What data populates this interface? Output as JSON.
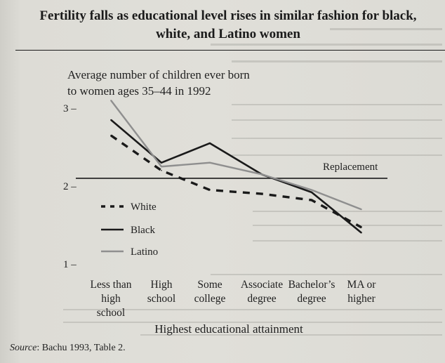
{
  "figure": {
    "title_line1": "Fertility falls as educational level rises in similar fashion for black,",
    "title_line2": "white, and Latino women",
    "source_label": "Source",
    "source_text": ": Bachu 1993, Table 2."
  },
  "chart_data": {
    "type": "line",
    "title_line1": "Average number of children ever born",
    "title_line2": "to women ages 35–44 in 1992",
    "xlabel": "Highest educational attainment",
    "ylabel": "",
    "ylim": [
      1,
      3
    ],
    "yticks": [
      1,
      2,
      3
    ],
    "ytick_labels": [
      "1 –",
      "2 –",
      "3 –"
    ],
    "categories": [
      [
        "Less than",
        "high",
        "school"
      ],
      [
        "High",
        "school"
      ],
      [
        "Some",
        "college"
      ],
      [
        "Associate",
        "degree"
      ],
      [
        "Bachelor’s",
        "degree"
      ],
      [
        "MA or",
        "higher"
      ]
    ],
    "series": [
      {
        "name": "White",
        "style": "dashed",
        "color": "#1a1a1a",
        "values": [
          2.65,
          2.2,
          1.95,
          1.9,
          1.82,
          1.47
        ]
      },
      {
        "name": "Black",
        "style": "solid",
        "color": "#1a1a1a",
        "values": [
          2.85,
          2.3,
          2.55,
          2.15,
          1.92,
          1.4
        ]
      },
      {
        "name": "Latino",
        "style": "solid",
        "color": "#8f8f8f",
        "values": [
          3.1,
          2.25,
          2.3,
          2.15,
          1.95,
          1.7
        ]
      }
    ],
    "reference_line": {
      "label": "Replacement",
      "value": 2.1
    },
    "legend_placement": "lower-left",
    "grid": false
  }
}
